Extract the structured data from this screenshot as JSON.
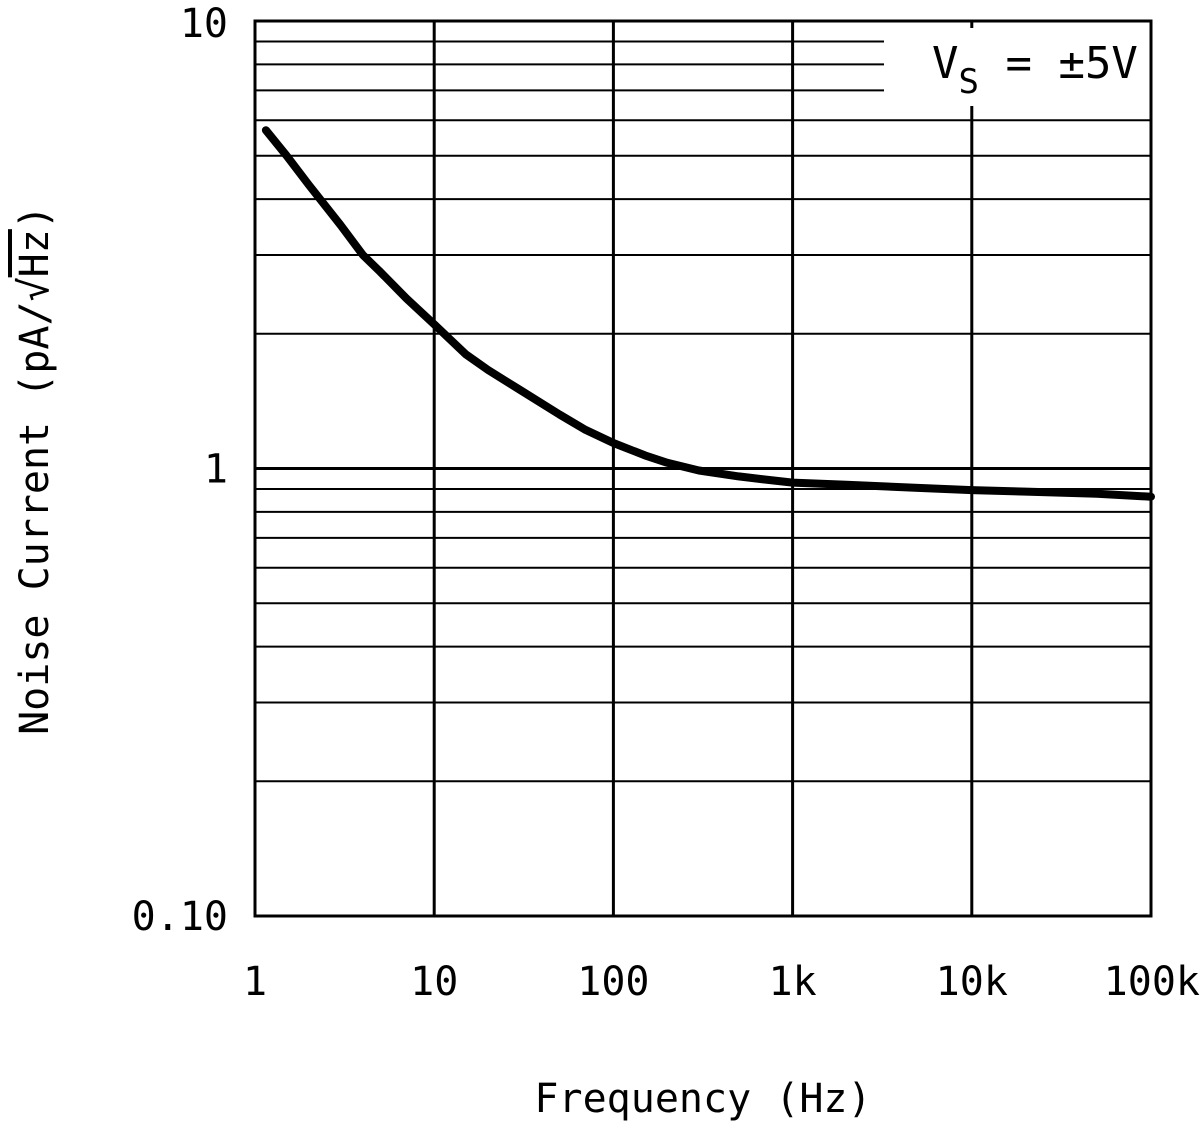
{
  "chart_data": {
    "type": "line",
    "xlabel": "Frequency (Hz)",
    "ylabel_prefix": "Noise Current (pA/",
    "ylabel_radicand": "Hz",
    "ylabel_suffix": ")",
    "x_scale": "log",
    "y_scale": "log",
    "xlim": [
      1,
      100000
    ],
    "ylim": [
      0.1,
      10
    ],
    "x_ticks": [
      1,
      10,
      100,
      1000,
      10000,
      100000
    ],
    "x_tick_labels": [
      "1",
      "10",
      "100",
      "1k",
      "10k",
      "100k"
    ],
    "y_ticks": [
      0.1,
      1,
      10
    ],
    "y_tick_labels": [
      "0.10",
      "1",
      "10"
    ],
    "grid": true,
    "annotation": {
      "main": "V",
      "sub": "S",
      "rest": " = ±5V"
    },
    "series": [
      {
        "color": "#000000",
        "x": [
          1.15,
          1.5,
          2,
          3,
          4,
          5,
          7,
          10,
          15,
          20,
          30,
          50,
          70,
          100,
          150,
          200,
          300,
          500,
          700,
          1000,
          2000,
          5000,
          10000,
          20000,
          50000,
          100000
        ],
        "y": [
          5.7,
          5.0,
          4.3,
          3.5,
          3.0,
          2.75,
          2.4,
          2.1,
          1.8,
          1.66,
          1.5,
          1.32,
          1.22,
          1.14,
          1.07,
          1.03,
          0.99,
          0.96,
          0.945,
          0.93,
          0.92,
          0.905,
          0.895,
          0.888,
          0.878,
          0.865
        ]
      }
    ]
  }
}
